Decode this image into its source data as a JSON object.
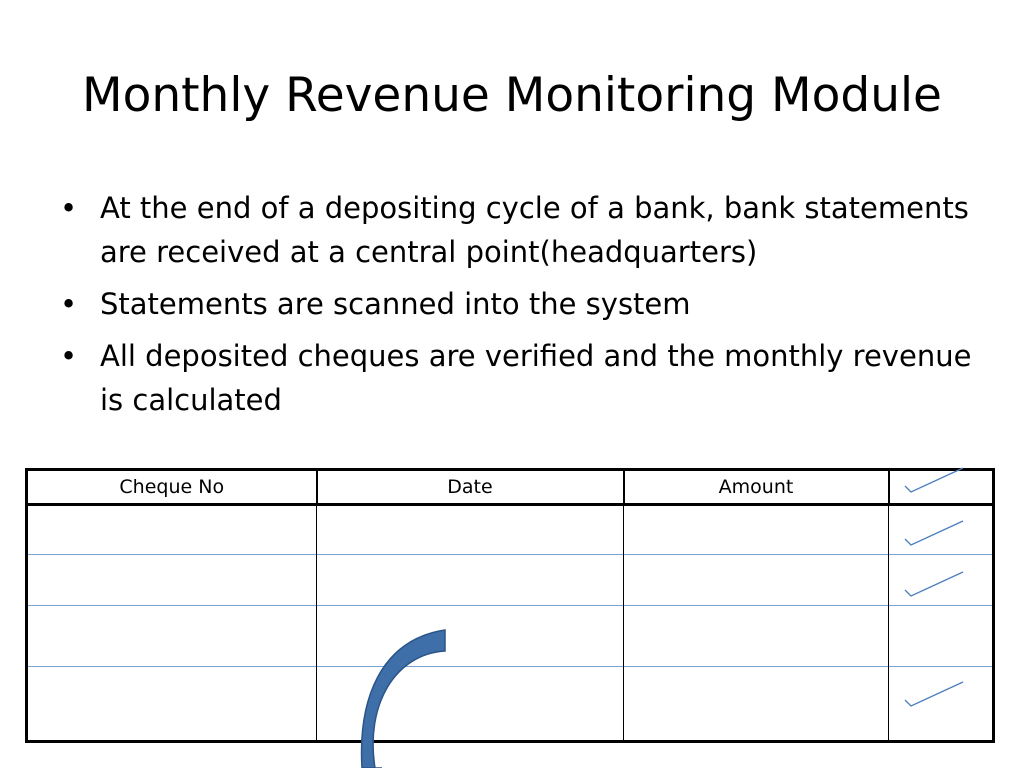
{
  "slide": {
    "title": "Monthly Revenue Monitoring Module",
    "bullet_glyph": "•",
    "bullets": [
      "At the end of a depositing cycle of a bank, bank statements are received at a central point(headquarters)",
      "Statements are scanned into the system",
      "All deposited cheques are verified and the monthly revenue is calculated"
    ]
  },
  "table": {
    "headers": [
      "Cheque No",
      "Date",
      "Amount",
      ""
    ],
    "rows": [
      {
        "cheque_no": "",
        "date": "",
        "amount": "",
        "verified": true
      },
      {
        "cheque_no": "",
        "date": "",
        "amount": "",
        "verified": true
      },
      {
        "cheque_no": "",
        "date": "",
        "amount": "",
        "verified": false
      },
      {
        "cheque_no": "",
        "date": "",
        "amount": "",
        "verified": true
      }
    ],
    "header_verified": true
  },
  "colors": {
    "tick": "#4a7ebf",
    "row_rule": "#7aa3cf",
    "arc_fill": "#3f6fa8",
    "arc_stroke": "#2b5488"
  },
  "icons": {
    "tick": "check-mark-icon",
    "arc": "curved-arrow-shape"
  }
}
